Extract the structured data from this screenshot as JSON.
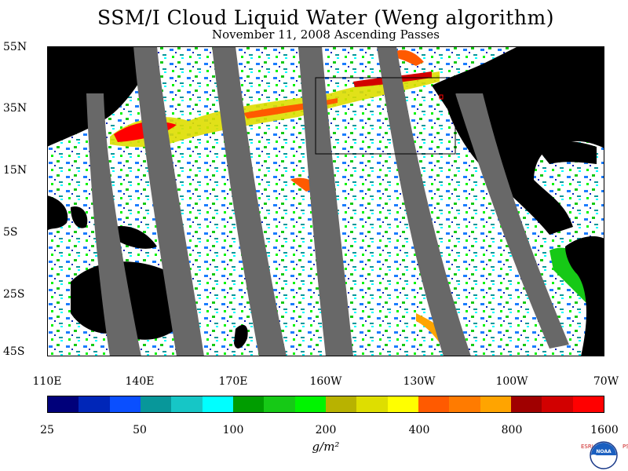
{
  "title": "SSM/I Cloud Liquid Water (Weng algorithm)",
  "subtitle": "November 11, 2008  Ascending Passes",
  "lat_labels": [
    "55N",
    "35N",
    "15N",
    "5S",
    "25S",
    "45S"
  ],
  "lon_labels": [
    "110E",
    "140E",
    "170E",
    "160W",
    "130W",
    "100W",
    "70W"
  ],
  "colorbar": {
    "colors": [
      "#00007a",
      "#0026b8",
      "#0a4fff",
      "#08979a",
      "#16c6c6",
      "#00ffff",
      "#009d00",
      "#16c916",
      "#00f400",
      "#b8b200",
      "#dede00",
      "#ffff00",
      "#ff5a00",
      "#ff7b00",
      "#ffa400",
      "#a00000",
      "#d20000",
      "#ff0000"
    ],
    "tick_labels": [
      "25",
      "50",
      "100",
      "200",
      "400",
      "800",
      "1600"
    ]
  },
  "units": "g/m²",
  "logo": {
    "left_letters": "ESRL",
    "right_letters": "PSD",
    "center_text": "NOAA"
  }
}
